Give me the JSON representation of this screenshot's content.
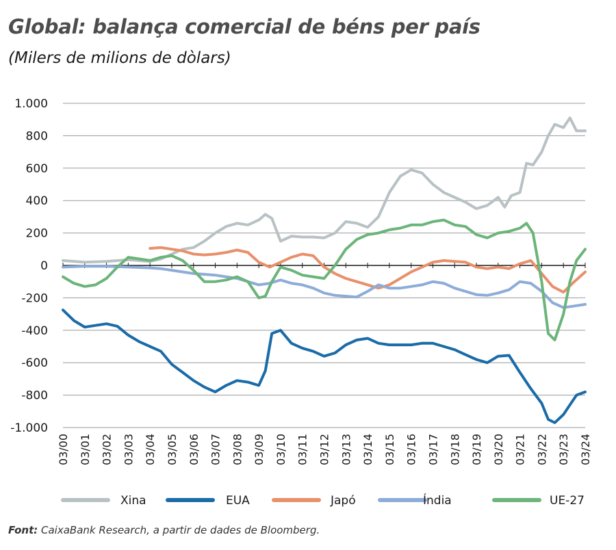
{
  "header": {
    "title": "Global: balança comercial de béns per país",
    "subtitle": "(Milers de milions de dòlars)"
  },
  "footer": {
    "source_label": "Font:",
    "source_text": " CaixaBank Research, a partir de dades de Bloomberg."
  },
  "chart_data": {
    "type": "line",
    "title": "Global: balança comercial de béns per país",
    "subtitle": "(Milers de milions de dòlars)",
    "xlabel": "",
    "ylabel": "",
    "ylim": [
      -1000,
      1000
    ],
    "yticks": [
      1000,
      800,
      600,
      400,
      200,
      0,
      -200,
      -400,
      -600,
      -800,
      -1000
    ],
    "ytick_labels": [
      "1.000",
      "800",
      "600",
      "400",
      "200",
      "0",
      "-200",
      "-400",
      "-600",
      "-800",
      "-1.000"
    ],
    "xlim": [
      2000,
      2024
    ],
    "xtick_labels": [
      "03/00",
      "03/01",
      "03/02",
      "03/03",
      "03/04",
      "03/05",
      "03/06",
      "03/07",
      "03/08",
      "03/09",
      "03/10",
      "03/11",
      "03/12",
      "03/13",
      "03/14",
      "03/15",
      "03/16",
      "03/17",
      "03/18",
      "03/19",
      "03/20",
      "03/21",
      "03/22",
      "03/23",
      "03/24"
    ],
    "grid": true,
    "legend_position": "bottom",
    "series": [
      {
        "name": "Xina",
        "color": "#b8c1c4",
        "x": [
          2000,
          2001,
          2002,
          2003,
          2004,
          2004.5,
          2005,
          2005.5,
          2006,
          2006.5,
          2007,
          2007.5,
          2008,
          2008.5,
          2009,
          2009.3,
          2009.6,
          2010,
          2010.5,
          2011,
          2011.5,
          2012,
          2012.5,
          2013,
          2013.5,
          2014,
          2014.5,
          2015,
          2015.5,
          2016,
          2016.5,
          2017,
          2017.5,
          2018,
          2018.5,
          2019,
          2019.5,
          2020,
          2020.3,
          2020.6,
          2021,
          2021.3,
          2021.6,
          2022,
          2022.3,
          2022.6,
          2023,
          2023.3,
          2023.6,
          2024
        ],
        "y": [
          30,
          20,
          25,
          35,
          25,
          40,
          70,
          100,
          110,
          150,
          200,
          240,
          260,
          250,
          280,
          315,
          290,
          150,
          180,
          175,
          175,
          170,
          200,
          270,
          260,
          235,
          300,
          450,
          550,
          590,
          570,
          500,
          450,
          420,
          390,
          350,
          370,
          420,
          360,
          430,
          450,
          630,
          620,
          700,
          800,
          870,
          850,
          910,
          830,
          830
        ]
      },
      {
        "name": "EUA",
        "color": "#1a6ba8",
        "x": [
          2000,
          2000.5,
          2001,
          2001.5,
          2002,
          2002.5,
          2003,
          2003.5,
          2004,
          2004.5,
          2005,
          2005.5,
          2006,
          2006.5,
          2007,
          2007.5,
          2008,
          2008.5,
          2009,
          2009.3,
          2009.6,
          2010,
          2010.5,
          2011,
          2011.5,
          2012,
          2012.5,
          2013,
          2013.5,
          2014,
          2014.5,
          2015,
          2015.5,
          2016,
          2016.5,
          2017,
          2017.5,
          2018,
          2018.5,
          2019,
          2019.5,
          2020,
          2020.5,
          2021,
          2021.5,
          2022,
          2022.3,
          2022.6,
          2023,
          2023.3,
          2023.6,
          2024
        ],
        "y": [
          -275,
          -340,
          -380,
          -370,
          -360,
          -375,
          -430,
          -470,
          -500,
          -530,
          -610,
          -660,
          -710,
          -750,
          -780,
          -740,
          -710,
          -720,
          -740,
          -650,
          -420,
          -400,
          -480,
          -510,
          -530,
          -560,
          -540,
          -490,
          -460,
          -450,
          -480,
          -490,
          -490,
          -490,
          -480,
          -480,
          -500,
          -520,
          -550,
          -580,
          -600,
          -560,
          -555,
          -660,
          -760,
          -850,
          -950,
          -970,
          -920,
          -860,
          -800,
          -780
        ]
      },
      {
        "name": "Japó",
        "color": "#e8906a",
        "x": [
          2004,
          2004.5,
          2005,
          2005.5,
          2006,
          2006.5,
          2007,
          2007.5,
          2008,
          2008.5,
          2009,
          2009.5,
          2010,
          2010.5,
          2011,
          2011.5,
          2012,
          2012.5,
          2013,
          2013.5,
          2014,
          2014.5,
          2015,
          2015.5,
          2016,
          2016.5,
          2017,
          2017.5,
          2018,
          2018.5,
          2019,
          2019.5,
          2020,
          2020.5,
          2021,
          2021.5,
          2022,
          2022.5,
          2023,
          2023.5,
          2024
        ],
        "y": [
          105,
          110,
          100,
          90,
          70,
          65,
          70,
          80,
          95,
          80,
          20,
          -10,
          20,
          50,
          70,
          60,
          -10,
          -50,
          -80,
          -100,
          -120,
          -140,
          -120,
          -80,
          -40,
          -10,
          20,
          30,
          25,
          20,
          -10,
          -20,
          -10,
          -20,
          10,
          30,
          -50,
          -130,
          -165,
          -100,
          -40
        ]
      },
      {
        "name": "Índia",
        "color": "#8dacd8",
        "x": [
          2000,
          2001,
          2002,
          2003,
          2004,
          2004.5,
          2005,
          2005.5,
          2006,
          2006.5,
          2007,
          2007.5,
          2008,
          2008.5,
          2009,
          2009.5,
          2010,
          2010.5,
          2011,
          2011.5,
          2012,
          2012.5,
          2013,
          2013.5,
          2014,
          2014.5,
          2015,
          2015.5,
          2016,
          2016.5,
          2017,
          2017.5,
          2018,
          2018.5,
          2019,
          2019.5,
          2020,
          2020.5,
          2021,
          2021.5,
          2022,
          2022.5,
          2023,
          2023.5,
          2024
        ],
        "y": [
          -10,
          -5,
          -5,
          -10,
          -15,
          -20,
          -30,
          -40,
          -50,
          -55,
          -60,
          -70,
          -80,
          -100,
          -120,
          -110,
          -90,
          -110,
          -120,
          -140,
          -170,
          -185,
          -190,
          -195,
          -160,
          -120,
          -140,
          -140,
          -130,
          -120,
          -100,
          -110,
          -140,
          -160,
          -180,
          -185,
          -170,
          -150,
          -100,
          -110,
          -160,
          -230,
          -260,
          -250,
          -240
        ]
      },
      {
        "name": "UE-27",
        "color": "#6bb47a",
        "x": [
          2000,
          2000.5,
          2001,
          2001.5,
          2002,
          2002.5,
          2003,
          2003.5,
          2004,
          2004.5,
          2005,
          2005.5,
          2006,
          2006.5,
          2007,
          2007.5,
          2008,
          2008.5,
          2009,
          2009.3,
          2009.6,
          2010,
          2010.5,
          2011,
          2011.5,
          2012,
          2012.5,
          2013,
          2013.5,
          2014,
          2014.5,
          2015,
          2015.5,
          2016,
          2016.5,
          2017,
          2017.5,
          2018,
          2018.5,
          2019,
          2019.5,
          2020,
          2020.5,
          2021,
          2021.3,
          2021.6,
          2022,
          2022.3,
          2022.6,
          2023,
          2023.3,
          2023.6,
          2024
        ],
        "y": [
          -70,
          -110,
          -130,
          -120,
          -80,
          -10,
          50,
          40,
          30,
          50,
          60,
          30,
          -30,
          -100,
          -100,
          -90,
          -70,
          -100,
          -200,
          -190,
          -100,
          -10,
          -30,
          -60,
          -70,
          -80,
          0,
          100,
          160,
          190,
          200,
          220,
          230,
          250,
          250,
          270,
          280,
          250,
          240,
          190,
          170,
          200,
          210,
          230,
          260,
          200,
          -100,
          -420,
          -460,
          -300,
          -100,
          30,
          100
        ]
      }
    ]
  }
}
